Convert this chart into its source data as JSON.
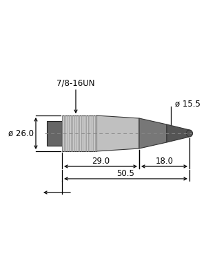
{
  "bg_color": "#ffffff",
  "body_color": "#c0c0c0",
  "knurl_bg_color": "#c8c8c8",
  "knurl_line_color": "#999999",
  "socket_color": "#666666",
  "cable_color": "#777777",
  "tip_color": "#555555",
  "dim_color": "#000000",
  "center_line_color": "#888888",
  "label_thread": "7/8-16UN",
  "label_diam_large": "ø 26.0",
  "label_diam_small": "ø 15.5",
  "label_len1": "29.0",
  "label_len2": "18.0",
  "label_total": "50.5",
  "knurl_n_lines": 20,
  "font_size": 8.5
}
